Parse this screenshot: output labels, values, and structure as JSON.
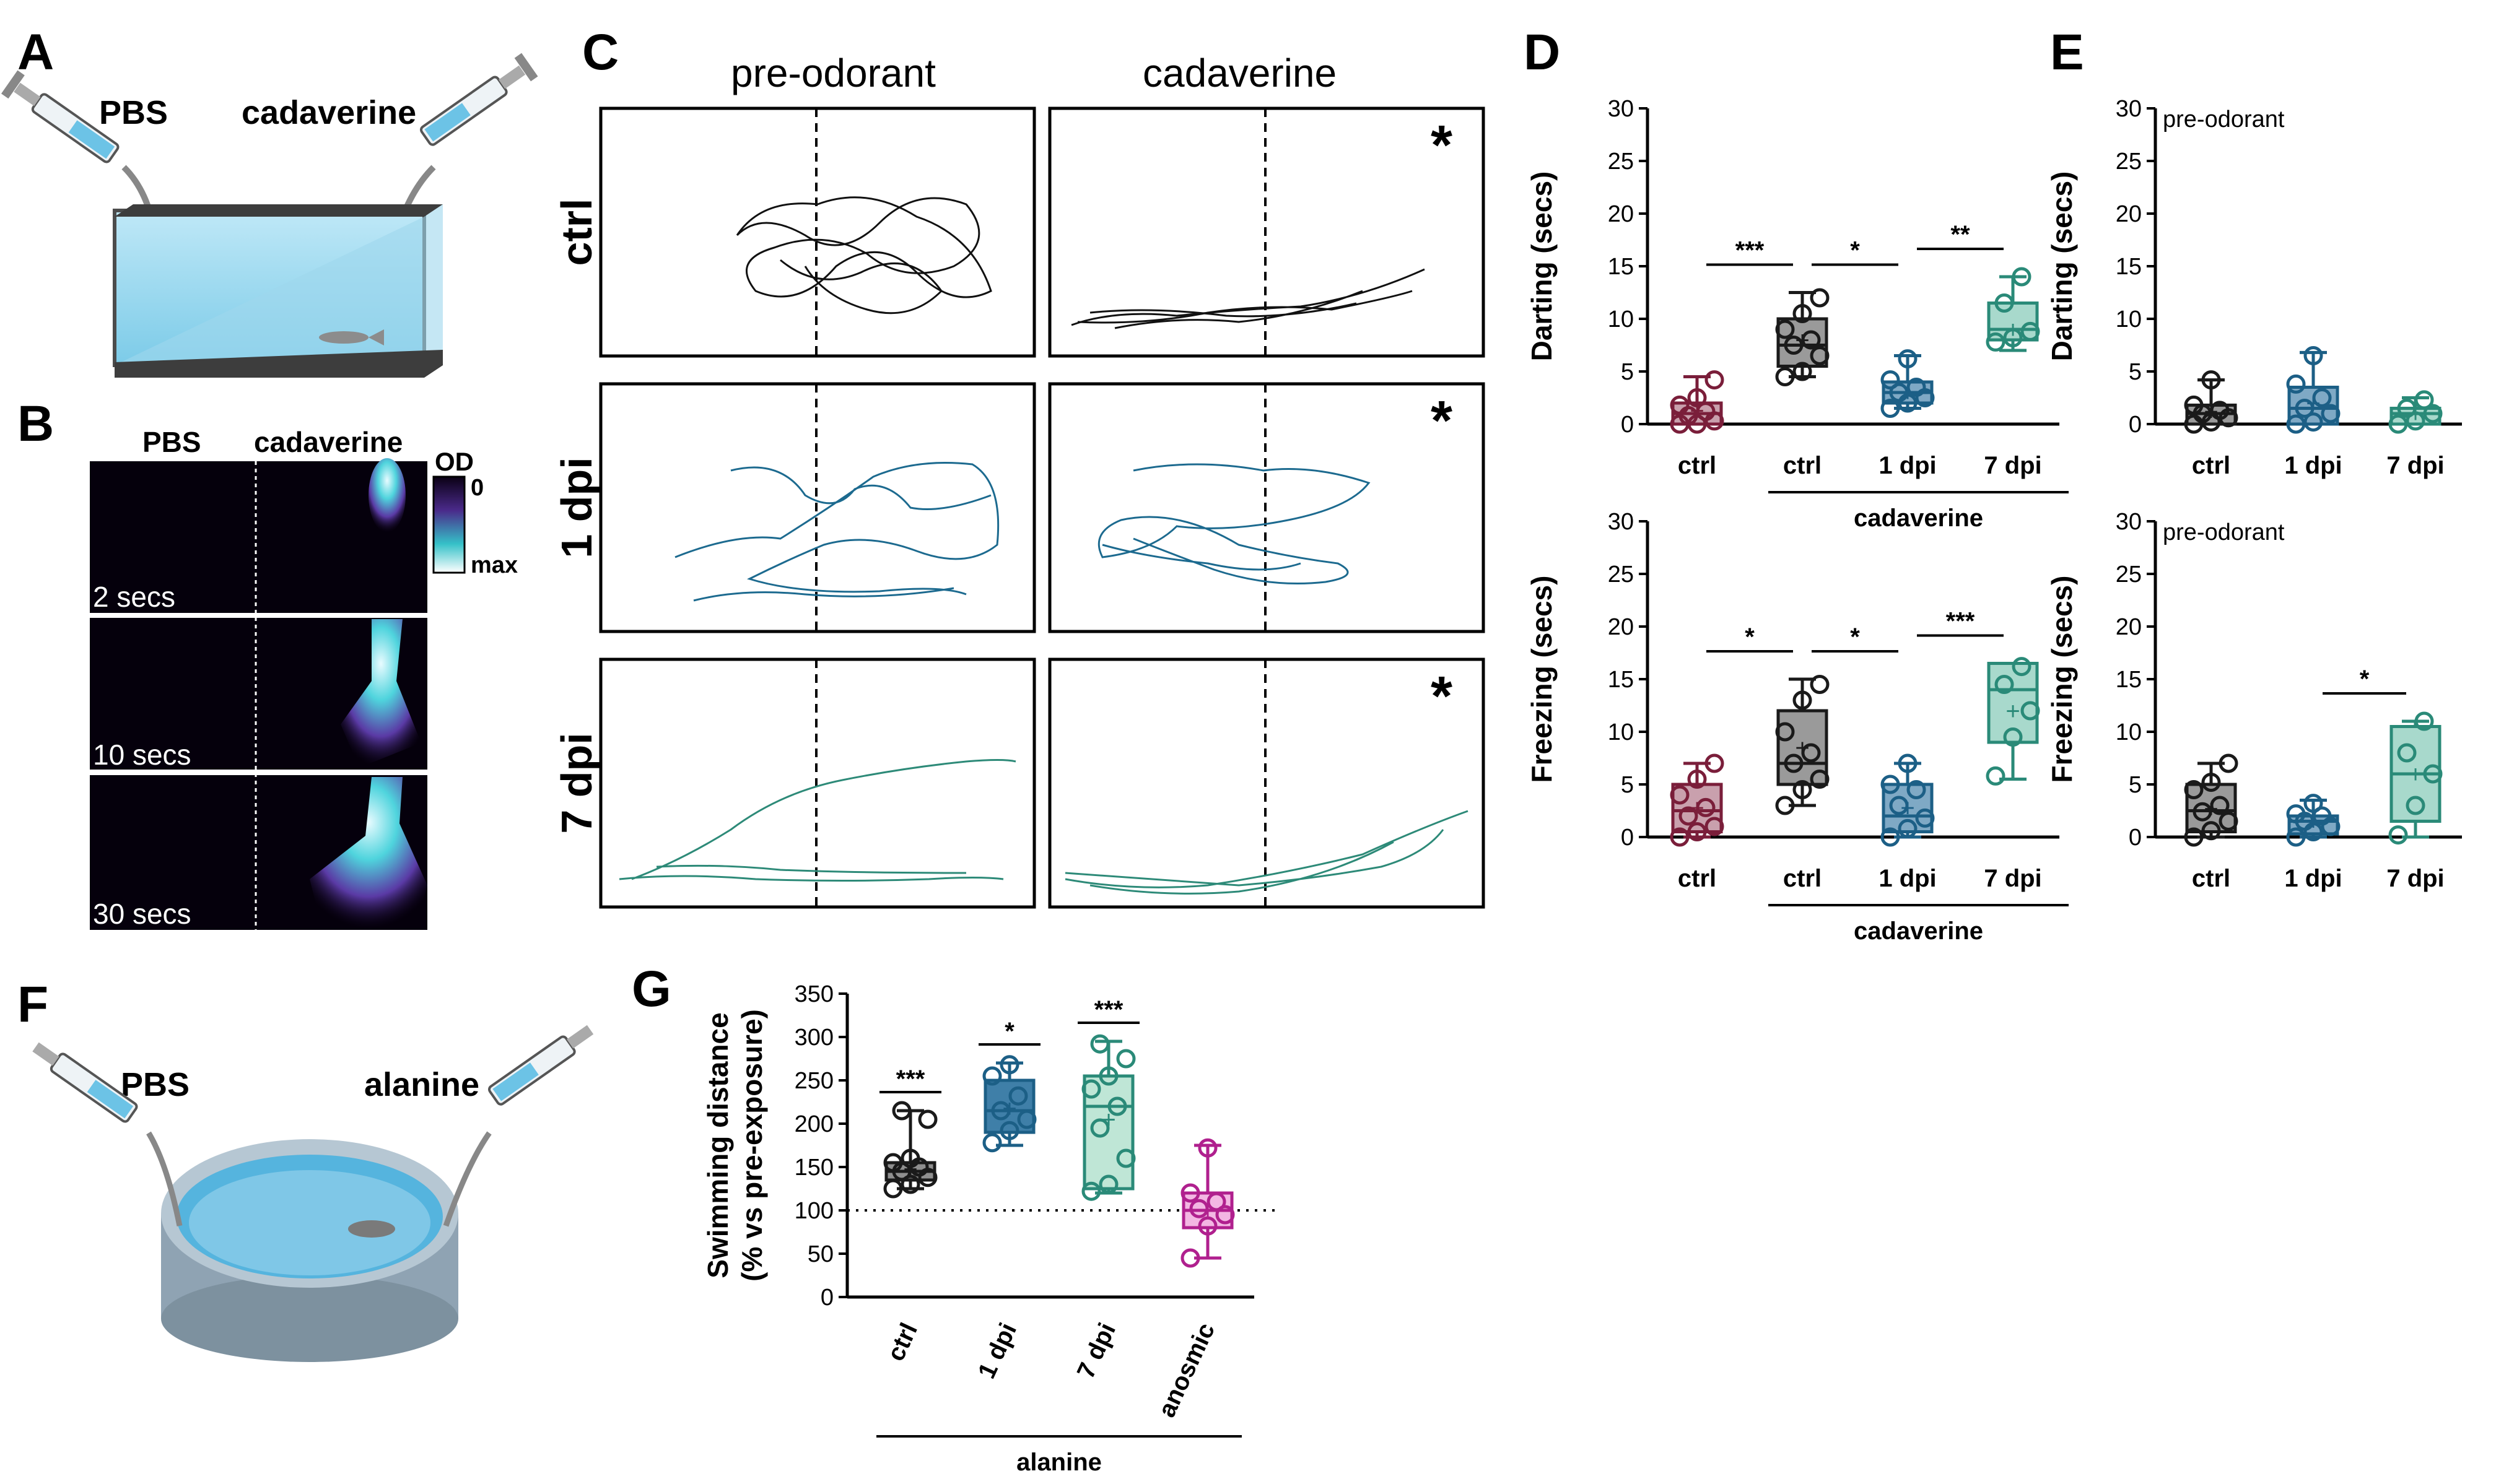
{
  "panels": {
    "A": "A",
    "B": "B",
    "C": "C",
    "D": "D",
    "E": "E",
    "F": "F",
    "G": "G"
  },
  "panelA": {
    "left_label": "PBS",
    "right_label": "cadaverine"
  },
  "panelB": {
    "col_left": "PBS",
    "col_right": "cadaverine",
    "scale_title": "OD",
    "scale_top": "0",
    "scale_bottom": "max",
    "times": [
      "2 secs",
      "10 secs",
      "30 secs"
    ]
  },
  "panelC": {
    "col_pre": "pre-odorant",
    "col_post": "cadaverine",
    "rows": [
      "ctrl",
      "1 dpi",
      "7 dpi"
    ],
    "star": "*"
  },
  "panelF": {
    "left_label": "PBS",
    "right_label": "alanine"
  },
  "colors": {
    "ctrl_red": "#7a1e3a",
    "ctrl_gray": "#1a1a1a",
    "dpi1": "#1c5f86",
    "dpi7": "#2a8a78",
    "anosmic": "#b0208e"
  },
  "chart_data": [
    {
      "id": "D-top",
      "type": "box",
      "ylabel": "Darting (secs)",
      "ylim": [
        0,
        30
      ],
      "yticks": [
        "0",
        "5",
        "10",
        "15",
        "20",
        "25",
        "30"
      ],
      "categories": [
        "ctrl",
        "ctrl",
        "1 dpi",
        "7 dpi"
      ],
      "group_label": "cadaverine",
      "boxes": [
        {
          "min": 0,
          "q1": 0,
          "median": 1,
          "q3": 2,
          "max": 4.5,
          "mean": 1.3,
          "points": [
            0,
            0,
            0.3,
            0.8,
            1.2,
            1.8,
            2.5,
            4.2
          ]
        },
        {
          "min": 4.5,
          "q1": 5.5,
          "median": 7.5,
          "q3": 10,
          "max": 12.5,
          "mean": 8,
          "points": [
            4.5,
            5,
            6.5,
            7.5,
            8,
            9,
            10.5,
            12
          ]
        },
        {
          "min": 1.5,
          "q1": 2,
          "median": 3,
          "q3": 4,
          "max": 6.5,
          "mean": 3,
          "points": [
            1.5,
            2,
            2.5,
            3,
            3.5,
            4.2,
            6.2
          ]
        },
        {
          "min": 7,
          "q1": 8,
          "median": 9,
          "q3": 11.5,
          "max": 14,
          "mean": 9,
          "points": [
            7.8,
            8.2,
            8.8,
            11.5,
            14
          ]
        }
      ],
      "significance": [
        {
          "text": "***",
          "from": 0,
          "to": 1
        },
        {
          "text": "*",
          "from": 1,
          "to": 2
        },
        {
          "text": "**",
          "from": 2,
          "to": 3
        }
      ]
    },
    {
      "id": "D-bottom",
      "type": "box",
      "ylabel": "Freezing (secs)",
      "ylim": [
        0,
        30
      ],
      "yticks": [
        "0",
        "5",
        "10",
        "15",
        "20",
        "25",
        "30"
      ],
      "categories": [
        "ctrl",
        "ctrl",
        "1 dpi",
        "7 dpi"
      ],
      "group_label": "cadaverine",
      "boxes": [
        {
          "min": 0,
          "q1": 0.5,
          "median": 2.5,
          "q3": 5,
          "max": 7,
          "mean": 2.8,
          "points": [
            0,
            0.5,
            1,
            2,
            2.8,
            4,
            5.5,
            7
          ]
        },
        {
          "min": 3,
          "q1": 5,
          "median": 7,
          "q3": 12,
          "max": 15,
          "mean": 8.5,
          "points": [
            3,
            4.5,
            5.5,
            7,
            8,
            10,
            13,
            14.5
          ]
        },
        {
          "min": 0,
          "q1": 0.5,
          "median": 2,
          "q3": 5,
          "max": 7,
          "mean": 2.8,
          "points": [
            0,
            0.8,
            1.8,
            3,
            4.5,
            5,
            7
          ]
        },
        {
          "min": 5.5,
          "q1": 9,
          "median": 14,
          "q3": 16.5,
          "max": 16.5,
          "mean": 12,
          "points": [
            5.8,
            9.5,
            12,
            14.5,
            16.2
          ]
        }
      ],
      "significance": [
        {
          "text": "*",
          "from": 0,
          "to": 1
        },
        {
          "text": "*",
          "from": 1,
          "to": 2
        },
        {
          "text": "***",
          "from": 2,
          "to": 3
        }
      ]
    },
    {
      "id": "E-top",
      "type": "box",
      "annotation": "pre-odorant",
      "ylabel": "Darting (secs)",
      "ylim": [
        0,
        30
      ],
      "yticks": [
        "0",
        "5",
        "10",
        "15",
        "20",
        "25",
        "30"
      ],
      "categories": [
        "ctrl",
        "1 dpi",
        "7 dpi"
      ],
      "boxes": [
        {
          "min": 0,
          "q1": 0,
          "median": 1,
          "q3": 1.8,
          "max": 4.2,
          "mean": 1.2,
          "points": [
            0,
            0.2,
            0.6,
            1,
            1.3,
            1.8,
            4.2
          ]
        },
        {
          "min": 0,
          "q1": 0,
          "median": 1.5,
          "q3": 3.5,
          "max": 6.8,
          "mean": 2,
          "points": [
            0,
            0.2,
            1,
            1.5,
            2.5,
            3.8,
            6.5
          ]
        },
        {
          "min": 0,
          "q1": 0,
          "median": 1,
          "q3": 1.5,
          "max": 2.5,
          "mean": 1,
          "points": [
            0,
            0.3,
            1,
            1.5,
            2.3
          ]
        }
      ],
      "significance": []
    },
    {
      "id": "E-bottom",
      "type": "box",
      "annotation": "pre-odorant",
      "ylabel": "Freezing (secs)",
      "ylim": [
        0,
        30
      ],
      "yticks": [
        "0",
        "5",
        "10",
        "15",
        "20",
        "25",
        "30"
      ],
      "categories": [
        "ctrl",
        "1 dpi",
        "7 dpi"
      ],
      "boxes": [
        {
          "min": 0,
          "q1": 0.5,
          "median": 2.5,
          "q3": 5,
          "max": 7,
          "mean": 2.7,
          "points": [
            0,
            0.6,
            1.5,
            2.4,
            3,
            4.5,
            5.2,
            7
          ]
        },
        {
          "min": 0,
          "q1": 0.3,
          "median": 1.5,
          "q3": 2,
          "max": 3.5,
          "mean": 1.5,
          "points": [
            0,
            0.5,
            1,
            1.5,
            2,
            2.2,
            3.2
          ]
        },
        {
          "min": 0,
          "q1": 1.5,
          "median": 6,
          "q3": 10.5,
          "max": 11,
          "mean": 6,
          "points": [
            0.2,
            3,
            6,
            8,
            11
          ]
        }
      ],
      "significance": [
        {
          "text": "*",
          "from": 1,
          "to": 2
        }
      ]
    },
    {
      "id": "G",
      "type": "box",
      "ylabel_line1": "Swimming distance",
      "ylabel_line2": "(% vs pre-exposure)",
      "ylim": [
        0,
        350
      ],
      "yticks": [
        "0",
        "50",
        "100",
        "150",
        "200",
        "250",
        "300",
        "350"
      ],
      "reference_line": 100,
      "categories": [
        "ctrl",
        "1 dpi",
        "7 dpi",
        "anosmic"
      ],
      "group_label": "alanine",
      "boxes": [
        {
          "min": 125,
          "q1": 135,
          "median": 145,
          "q3": 155,
          "max": 215,
          "mean": 148,
          "points": [
            125,
            130,
            138,
            145,
            150,
            155,
            160,
            205,
            215
          ]
        },
        {
          "min": 175,
          "q1": 190,
          "median": 215,
          "q3": 250,
          "max": 270,
          "mean": 218,
          "points": [
            178,
            192,
            205,
            215,
            232,
            255,
            268
          ]
        },
        {
          "min": 120,
          "q1": 125,
          "median": 220,
          "q3": 255,
          "max": 295,
          "mean": 205,
          "points": [
            122,
            130,
            160,
            195,
            220,
            240,
            255,
            275,
            292
          ]
        },
        {
          "min": 45,
          "q1": 80,
          "median": 100,
          "q3": 120,
          "max": 175,
          "mean": 100,
          "points": [
            45,
            82,
            95,
            102,
            110,
            120,
            172
          ]
        }
      ],
      "significance": [
        {
          "text": "***",
          "over": 0
        },
        {
          "text": "*",
          "over": 1
        },
        {
          "text": "***",
          "over": 2
        }
      ]
    }
  ]
}
